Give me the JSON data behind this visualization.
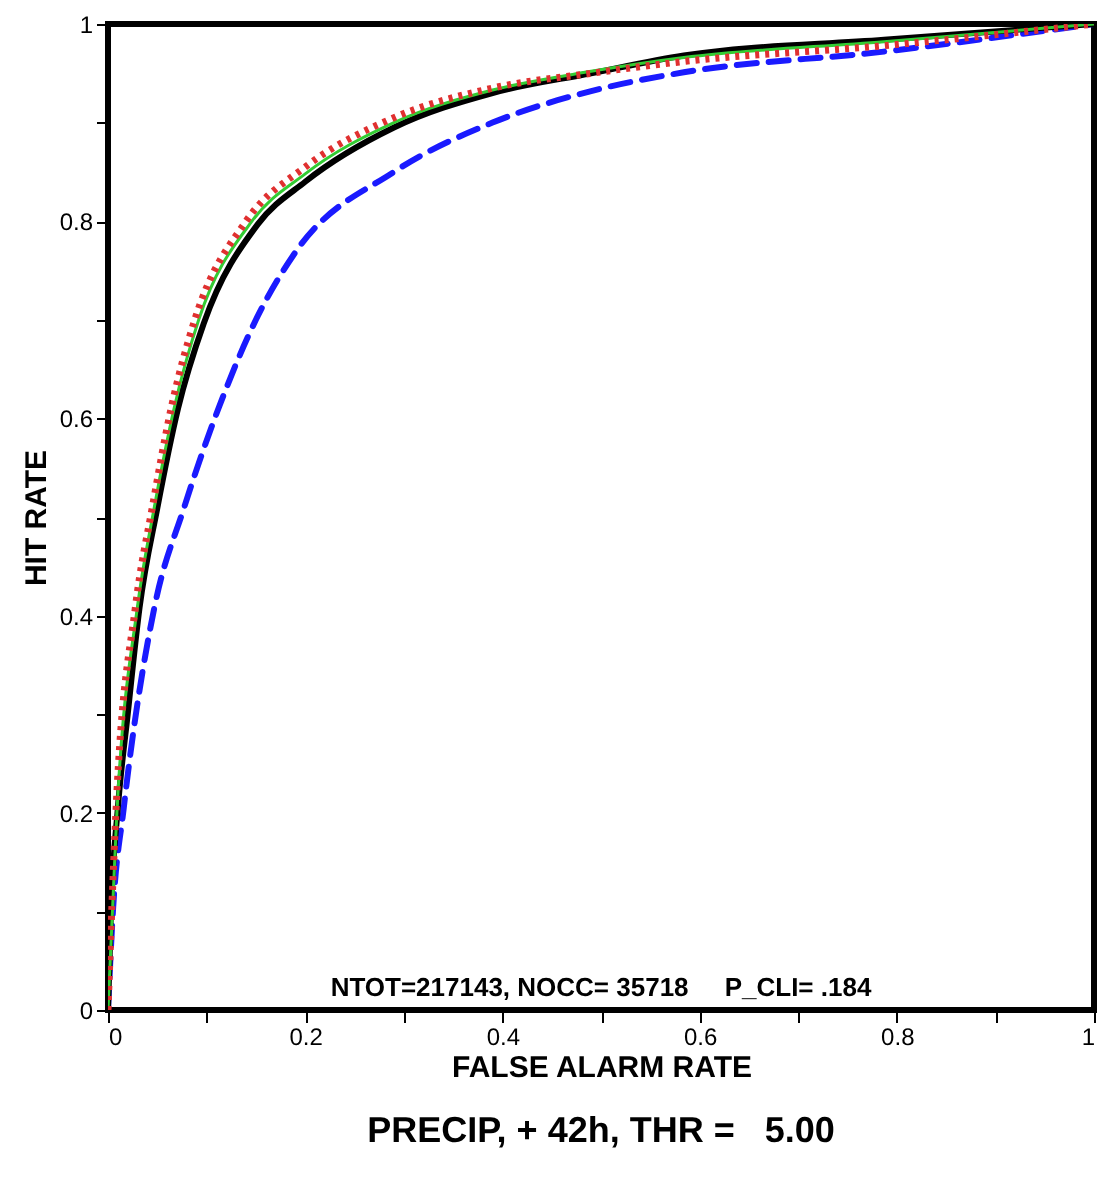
{
  "chart_data": {
    "type": "line",
    "title": "PRECIP, + 42h, THR =   5.00",
    "xlabel": "FALSE ALARM RATE",
    "ylabel": "HIT RATE",
    "annotations": [
      "NTOT=217143, NOCC= 35718     P_CLI= .184"
    ],
    "xlim": [
      0,
      1
    ],
    "ylim": [
      0,
      1
    ],
    "xticks": [
      0,
      {
        "value": 0.1,
        "label": null
      },
      0.2,
      {
        "value": 0.3,
        "label": null
      },
      0.4,
      {
        "value": 0.5,
        "label": null
      },
      0.6,
      {
        "value": 0.7,
        "label": null
      },
      0.8,
      {
        "value": 0.9,
        "label": null
      },
      1
    ],
    "yticks": [
      0,
      {
        "value": 0.1,
        "label": null
      },
      0.2,
      {
        "value": 0.3,
        "label": null
      },
      0.4,
      {
        "value": 0.5,
        "label": null
      },
      0.6,
      {
        "value": 0.7,
        "label": null
      },
      0.8,
      {
        "value": 0.9,
        "label": null
      },
      1
    ],
    "grid": false,
    "marker": "none",
    "series": [
      {
        "color": "#1a1aff",
        "line_style": "dashed",
        "x": [
          0,
          0.005,
          0.016,
          0.047,
          0.077,
          0.112,
          0.15,
          0.189,
          0.29,
          0.39,
          0.49,
          0.584,
          0.787,
          1
        ],
        "values": [
          0,
          0.1,
          0.205,
          0.408,
          0.509,
          0.61,
          0.7,
          0.767,
          0.85,
          0.9,
          0.932,
          0.951,
          0.972,
          1
        ]
      },
      {
        "color": "#000000",
        "line_style": "solid",
        "x": [
          0,
          0.003,
          0.01,
          0.02,
          0.032,
          0.05,
          0.071,
          0.097,
          0.152,
          0.2,
          0.29,
          0.39,
          0.49,
          0.584,
          0.787,
          1
        ],
        "values": [
          0,
          0.1,
          0.205,
          0.3,
          0.408,
          0.509,
          0.61,
          0.696,
          0.797,
          0.84,
          0.895,
          0.93,
          0.95,
          0.968,
          0.984,
          1
        ]
      },
      {
        "color": "#33cc33",
        "line_style": "solid",
        "x": [
          0,
          0.009,
          0.03,
          0.047,
          0.067,
          0.092,
          0.146,
          0.2,
          0.29,
          0.39,
          0.49,
          0.584,
          0.787,
          1
        ],
        "values": [
          0,
          0.2,
          0.41,
          0.51,
          0.61,
          0.7,
          0.8,
          0.848,
          0.9,
          0.933,
          0.952,
          0.966,
          0.982,
          1
        ]
      },
      {
        "color": "#e03030",
        "line_style": "dotted",
        "x": [
          0,
          0.008,
          0.028,
          0.045,
          0.064,
          0.088,
          0.14,
          0.2,
          0.29,
          0.39,
          0.49,
          0.584,
          0.787,
          1
        ],
        "values": [
          0,
          0.2,
          0.41,
          0.51,
          0.61,
          0.7,
          0.8,
          0.855,
          0.905,
          0.935,
          0.95,
          0.962,
          0.978,
          1
        ]
      }
    ]
  }
}
